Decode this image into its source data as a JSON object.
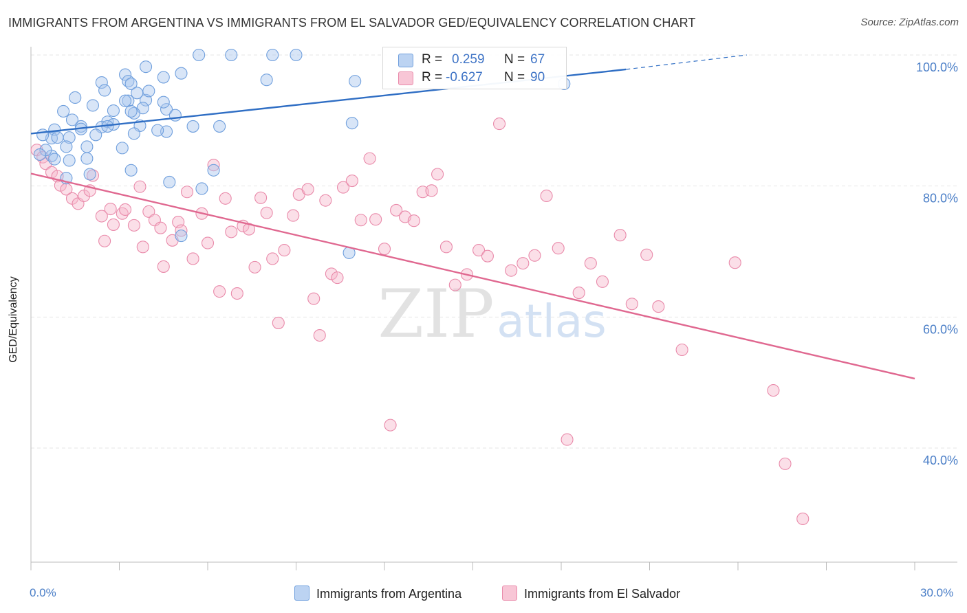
{
  "title": "IMMIGRANTS FROM ARGENTINA VS IMMIGRANTS FROM EL SALVADOR GED/EQUIVALENCY CORRELATION CHART",
  "source": "Source: ZipAtlas.com",
  "watermark": {
    "zip": "ZIP",
    "atlas": "atlas"
  },
  "legend_top": {
    "rows": [
      {
        "r_label": "R =",
        "r_value": "0.259",
        "n_label": "N =",
        "n_value": "67"
      },
      {
        "r_label": "R =",
        "r_value": "-0.627",
        "n_label": "N =",
        "n_value": "90"
      }
    ]
  },
  "legend_bottom": [
    {
      "label": "Immigrants from Argentina"
    },
    {
      "label": "Immigrants from El Salvador"
    }
  ],
  "x_axis_labels": {
    "min": "0.0%",
    "max": "30.0%"
  },
  "chart_data": {
    "type": "scatter",
    "title": "IMMIGRANTS FROM ARGENTINA VS IMMIGRANTS FROM EL SALVADOR GED/EQUIVALENCY CORRELATION CHART",
    "xlabel": "",
    "ylabel": "GED/Equivalency",
    "xlim": [
      0,
      30
    ],
    "ylim": [
      20,
      102
    ],
    "y_ticks": [
      {
        "value": 100,
        "label": "100.0%"
      },
      {
        "value": 80,
        "label": "80.0%"
      },
      {
        "value": 60,
        "label": "60.0%"
      },
      {
        "value": 40,
        "label": "40.0%"
      }
    ],
    "x_tick_values": [
      0,
      3,
      6,
      9,
      12,
      15,
      18,
      21,
      24,
      27,
      30
    ],
    "grid": true,
    "legend_position": "top-center",
    "colors": {
      "argentina_fill": "#a9c6ee",
      "argentina_stroke": "#6f9fdd",
      "argentina_line": "#2f6ec4",
      "elsalvador_fill": "#f6b8cc",
      "elsalvador_stroke": "#e98aaa",
      "elsalvador_line": "#e06890",
      "tick_label": "#4a7ec7",
      "grid": "#e6e6e6"
    },
    "series": [
      {
        "name": "Immigrants from Argentina",
        "x": [
          5.7,
          6.8,
          8.2,
          9.0,
          3.9,
          5.1,
          3.2,
          2.4,
          3.3,
          2.5,
          1.5,
          2.1,
          3.3,
          3.9,
          4.6,
          4.5,
          2.8,
          3.8,
          4.9,
          2.6,
          1.1,
          1.7,
          1.4,
          2.4,
          2.8,
          0.8,
          2.6,
          1.3,
          3.7,
          5.5,
          0.7,
          1.7,
          2.2,
          3.1,
          4.6,
          4.3,
          3.5,
          1.9,
          0.4,
          0.9,
          1.2,
          3.4,
          1.9,
          0.7,
          0.5,
          0.3,
          0.8,
          1.3,
          4.7,
          6.2,
          1.2,
          5.8,
          5.1,
          10.8,
          8.0,
          11.0,
          18.1,
          2.0,
          4.5,
          4.0,
          3.4,
          3.6,
          3.2,
          3.5,
          3.4,
          6.4,
          10.9
        ],
        "y": [
          100.0,
          100.0,
          100.0,
          100.0,
          98.2,
          97.2,
          97.0,
          95.8,
          96.0,
          94.6,
          93.5,
          92.3,
          93.0,
          93.1,
          91.7,
          92.8,
          91.5,
          91.9,
          90.8,
          89.8,
          91.4,
          89.1,
          90.1,
          89.0,
          89.4,
          88.6,
          89.1,
          87.4,
          89.2,
          89.1,
          87.3,
          88.7,
          87.8,
          85.8,
          88.3,
          88.5,
          88.0,
          86.0,
          87.8,
          87.4,
          86.0,
          82.4,
          84.2,
          84.6,
          85.5,
          84.8,
          84.1,
          83.9,
          80.6,
          82.4,
          81.2,
          79.6,
          72.4,
          69.8,
          96.2,
          96.0,
          95.6,
          81.8,
          96.6,
          94.5,
          95.6,
          94.2,
          93.0,
          91.1,
          91.4,
          89.1,
          89.6
        ]
      },
      {
        "name": "Immigrants from El Salvador",
        "x": [
          0.2,
          0.4,
          0.5,
          0.7,
          0.9,
          1.0,
          1.2,
          1.4,
          1.6,
          1.8,
          2.0,
          2.1,
          2.4,
          2.5,
          2.7,
          2.8,
          3.1,
          3.2,
          3.5,
          3.7,
          3.8,
          4.0,
          4.2,
          4.4,
          4.5,
          4.8,
          5.0,
          5.1,
          5.3,
          5.5,
          5.8,
          6.0,
          6.2,
          6.4,
          6.6,
          6.8,
          7.0,
          7.2,
          7.4,
          7.6,
          7.8,
          8.0,
          8.2,
          8.4,
          8.6,
          8.9,
          9.1,
          9.4,
          9.6,
          9.8,
          10.0,
          10.2,
          10.4,
          10.6,
          10.9,
          11.2,
          11.5,
          11.7,
          12.0,
          12.2,
          12.4,
          12.7,
          13.0,
          13.3,
          13.6,
          13.8,
          14.1,
          14.4,
          14.8,
          15.2,
          15.5,
          15.9,
          16.3,
          16.7,
          17.1,
          17.5,
          17.9,
          18.2,
          18.6,
          19.0,
          19.4,
          20.0,
          20.4,
          20.9,
          21.3,
          22.1,
          23.9,
          25.2,
          25.6,
          26.2
        ],
        "y": [
          85.5,
          84.4,
          83.4,
          82.1,
          81.5,
          80.1,
          79.5,
          78.1,
          77.3,
          78.5,
          79.3,
          81.6,
          75.4,
          71.6,
          76.5,
          74.1,
          75.8,
          76.4,
          74.0,
          79.9,
          70.7,
          76.1,
          74.8,
          73.6,
          67.7,
          71.7,
          74.5,
          73.2,
          79.1,
          68.9,
          75.8,
          71.3,
          83.2,
          63.9,
          78.1,
          73.0,
          63.6,
          73.9,
          73.4,
          67.6,
          78.2,
          75.9,
          68.9,
          59.1,
          70.2,
          75.5,
          78.7,
          79.5,
          62.8,
          57.2,
          77.8,
          66.6,
          66.0,
          79.8,
          80.8,
          74.8,
          84.2,
          74.9,
          70.4,
          43.5,
          76.3,
          75.3,
          74.7,
          79.1,
          79.3,
          81.8,
          70.7,
          64.9,
          66.5,
          70.2,
          69.3,
          89.5,
          67.1,
          68.2,
          69.4,
          78.5,
          70.5,
          41.3,
          63.7,
          68.2,
          65.4,
          72.5,
          62.0,
          69.5,
          61.6,
          55.0,
          68.3,
          48.8,
          37.6,
          29.2
        ]
      }
    ],
    "trend_lines": [
      {
        "name": "Immigrants from Argentina",
        "x": [
          0,
          20.2
        ],
        "y": [
          88.0,
          97.8
        ],
        "dashed_to": {
          "x": 24.3,
          "y": 100.0
        }
      },
      {
        "name": "Immigrants from El Salvador",
        "x": [
          0,
          30
        ],
        "y": [
          81.9,
          50.6
        ]
      }
    ]
  }
}
